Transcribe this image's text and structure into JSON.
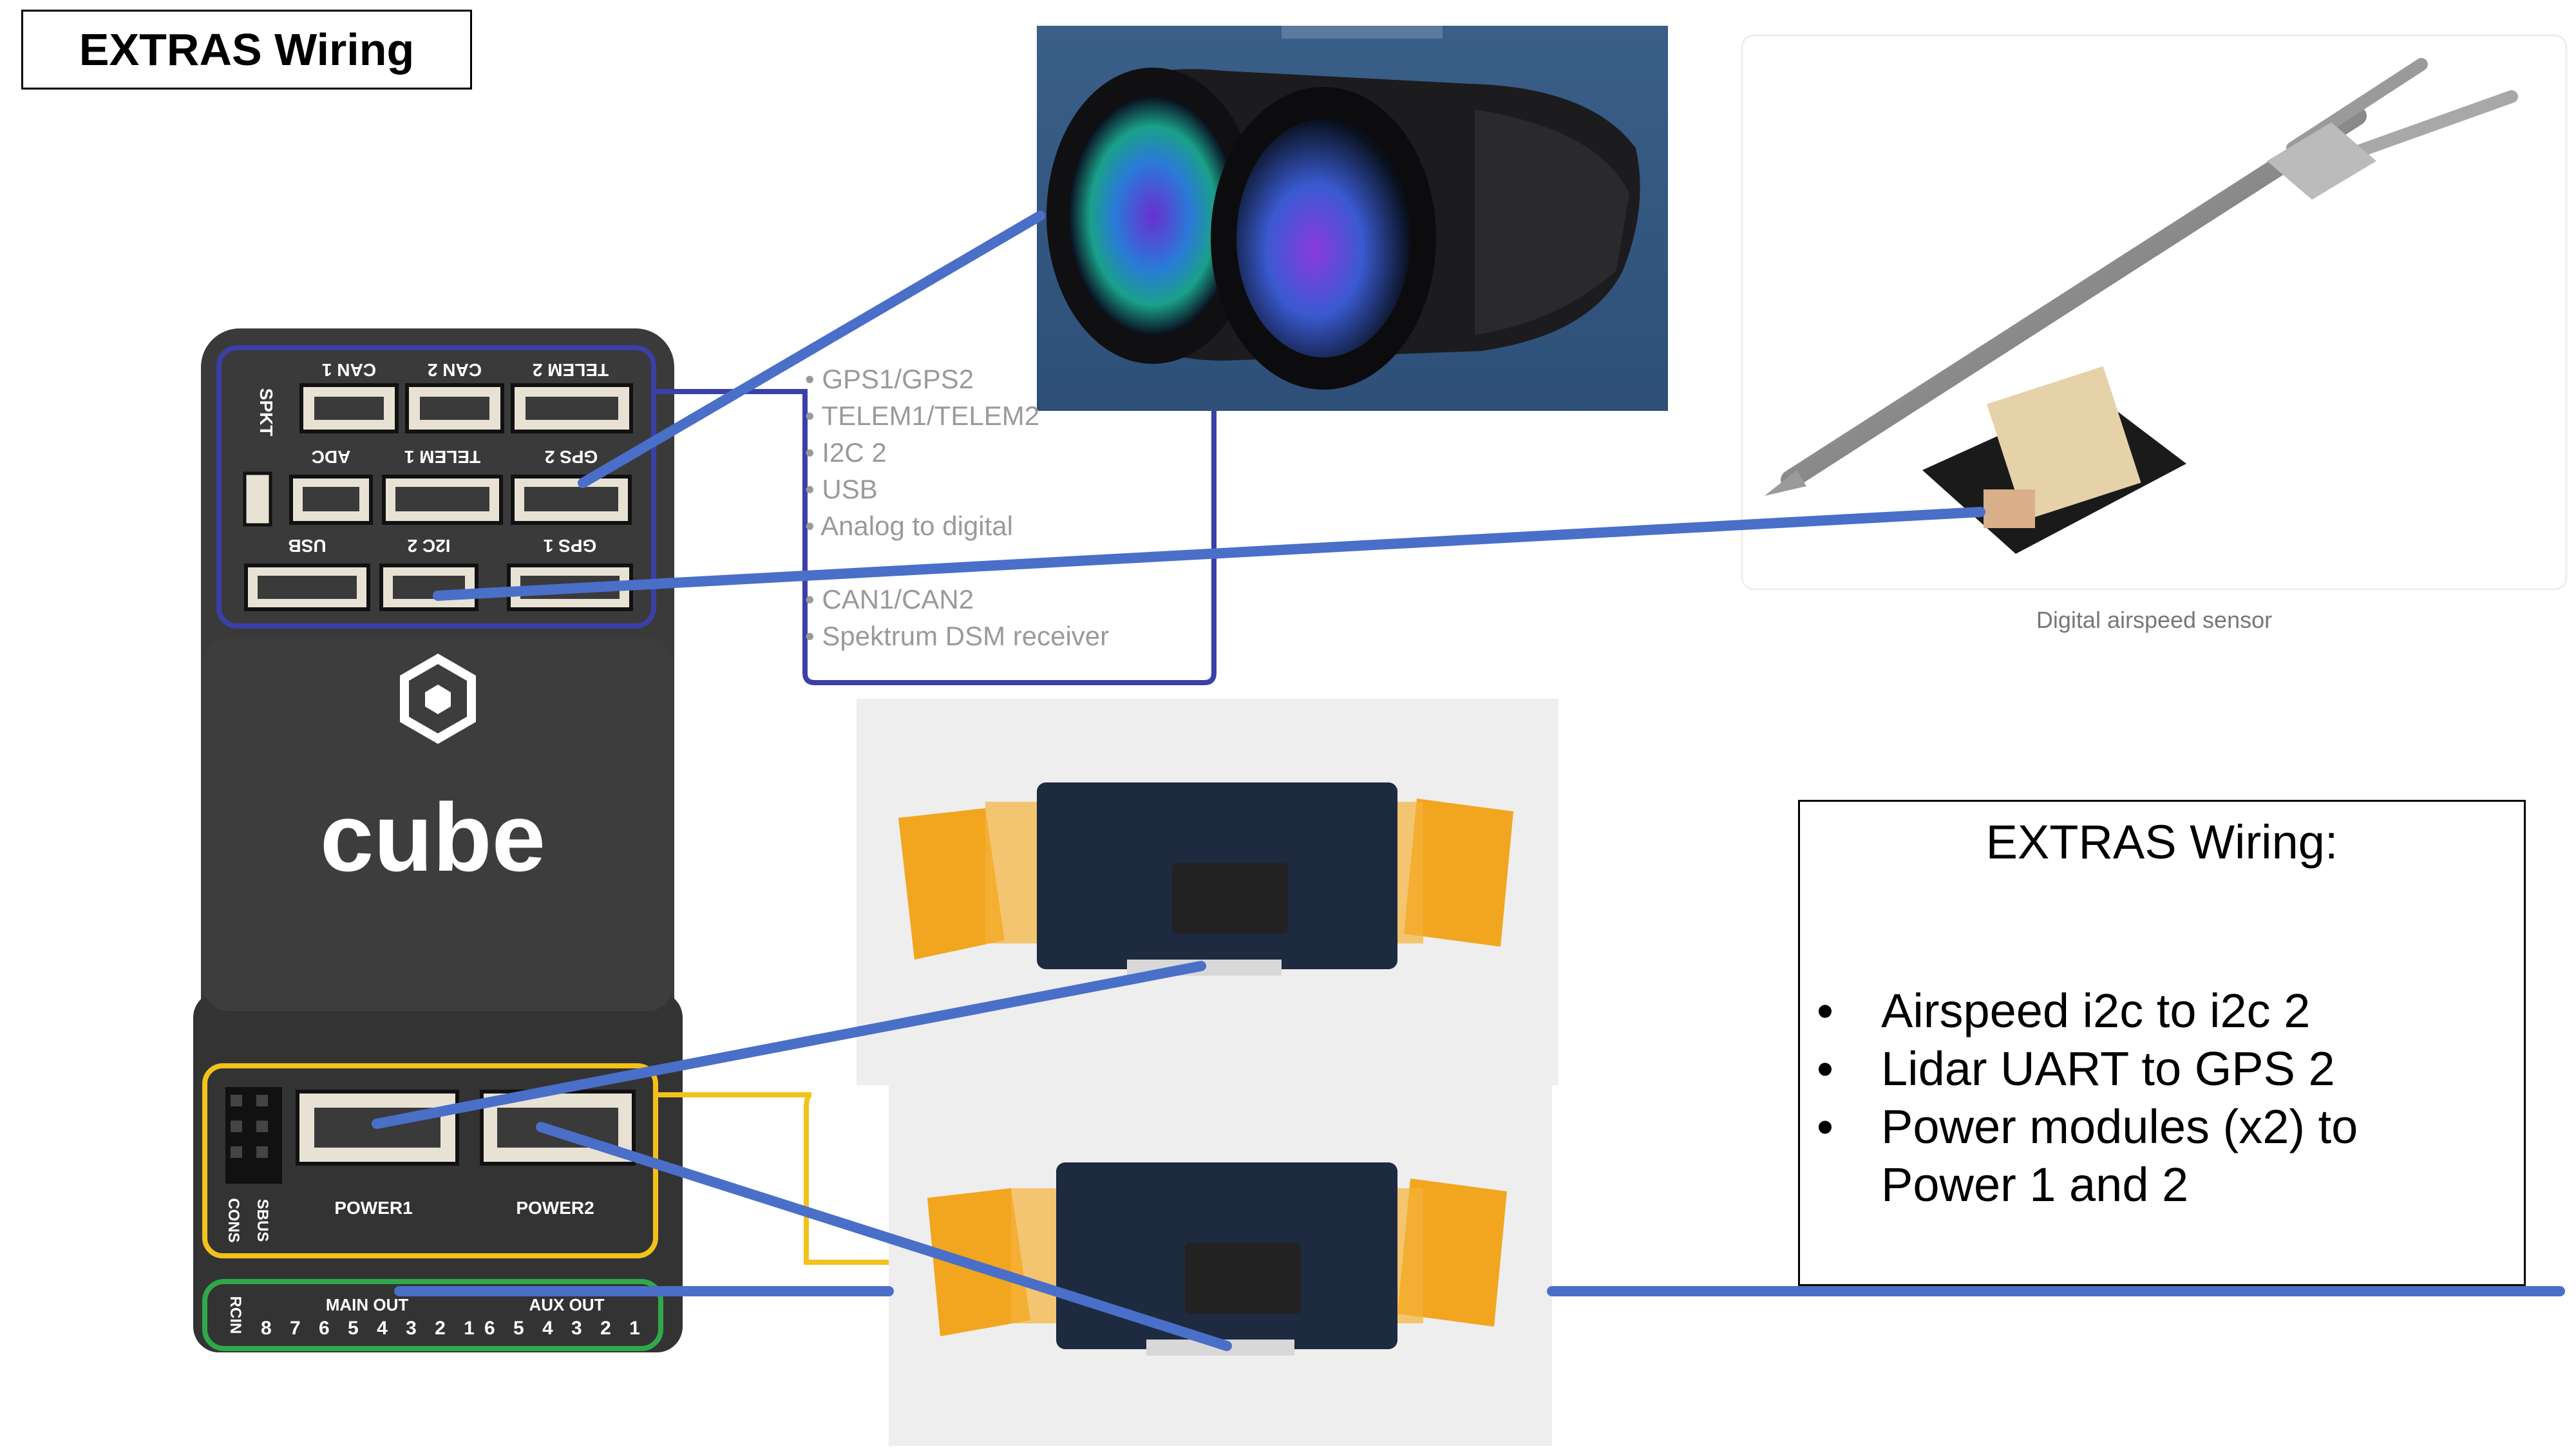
{
  "title": "EXTRAS Wiring",
  "cube": {
    "brand": "cube",
    "top_port_labels": [
      "CAN 1",
      "CAN 2",
      "TELEM 2"
    ],
    "mid_port_labels": [
      "ADC",
      "TELEM 1",
      "GPS 2"
    ],
    "low_port_labels": [
      "USB",
      "I2C 2",
      "GPS 1"
    ],
    "side_label": "SPKT",
    "power_labels": [
      "POWER1",
      "POWER2"
    ],
    "left_labels": [
      "CONS",
      "SBUS"
    ],
    "rcin_label": "RCIN",
    "main_out_label": "MAIN OUT",
    "aux_out_label": "AUX OUT",
    "main_out_numbers": "8 7 6 5 4 3 2 1",
    "aux_out_numbers": "6 5 4 3 2 1"
  },
  "ports_list": [
    "GPS1/GPS2",
    "TELEM1/TELEM2",
    "I2C 2",
    "USB",
    "Analog to digital",
    "CAN1/CAN2",
    "Spektrum DSM receiver"
  ],
  "airspeed_caption": "Digital airspeed sensor",
  "notes": {
    "title": "EXTRAS Wiring:",
    "bullet": "•",
    "items": [
      "Airspeed i2c to i2c 2",
      "Lidar UART to GPS 2",
      "Power modules (x2) to Power 1 and 2"
    ]
  },
  "colors": {
    "wire_blue": "#4a6fc8",
    "cube_body": "#3a3a3a",
    "frame_blue": "#3b3fa8",
    "frame_yellow": "#f2c21b",
    "frame_green": "#2fa84a",
    "connector_orange": "#f2a51f"
  },
  "icons": [
    "cube-logo-icon",
    "lidar-binocular-icon",
    "airspeed-probe-icon",
    "power-module-icon"
  ]
}
